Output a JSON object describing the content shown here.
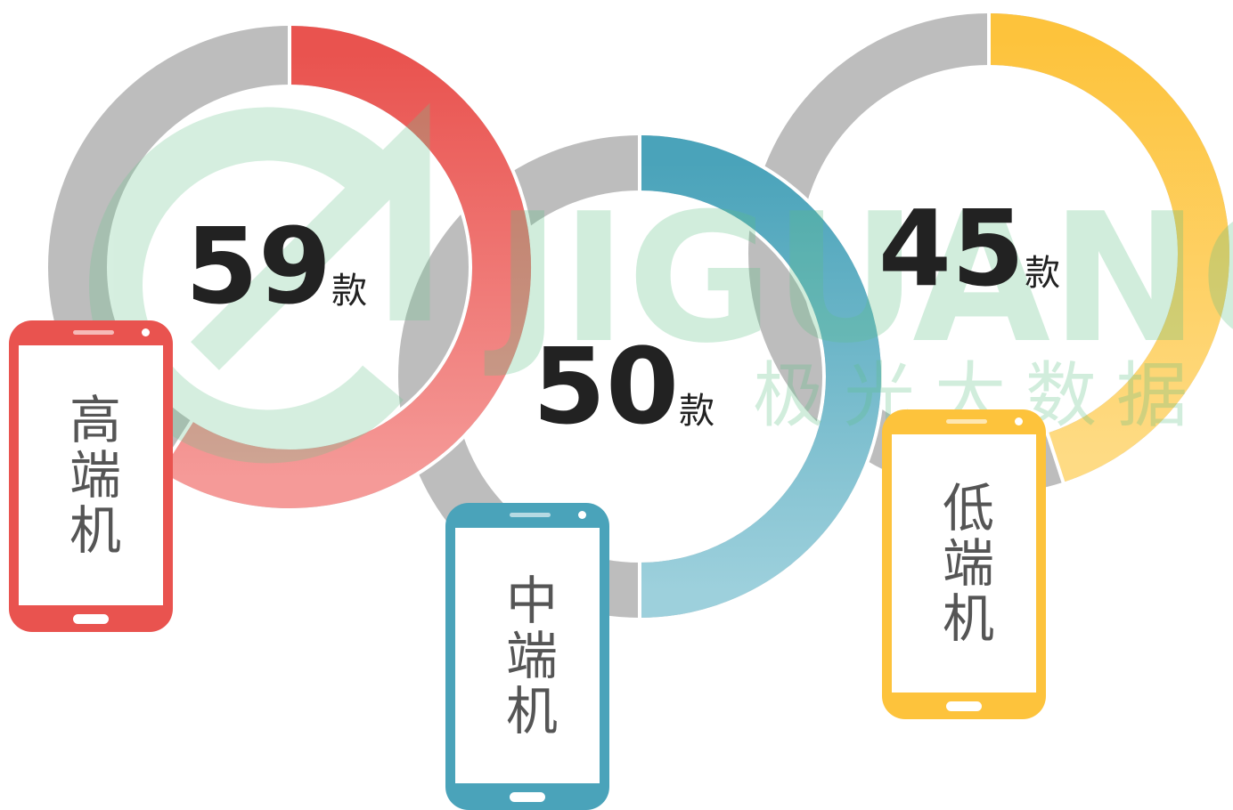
{
  "items": [
    {
      "value": 59,
      "unit": "款",
      "label": "高端机",
      "color": "#e9534f",
      "light": "#f59a98"
    },
    {
      "value": 50,
      "unit": "款",
      "label": "中端机",
      "color": "#4aa3ba",
      "light": "#9dd0dc"
    },
    {
      "value": 45,
      "unit": "款",
      "label": "低端机",
      "color": "#fdc33c",
      "light": "#fedb84"
    }
  ],
  "rest_color": "#bdbdbd",
  "watermark": {
    "brand": "JIGUANG",
    "name": "极光大数据"
  }
}
